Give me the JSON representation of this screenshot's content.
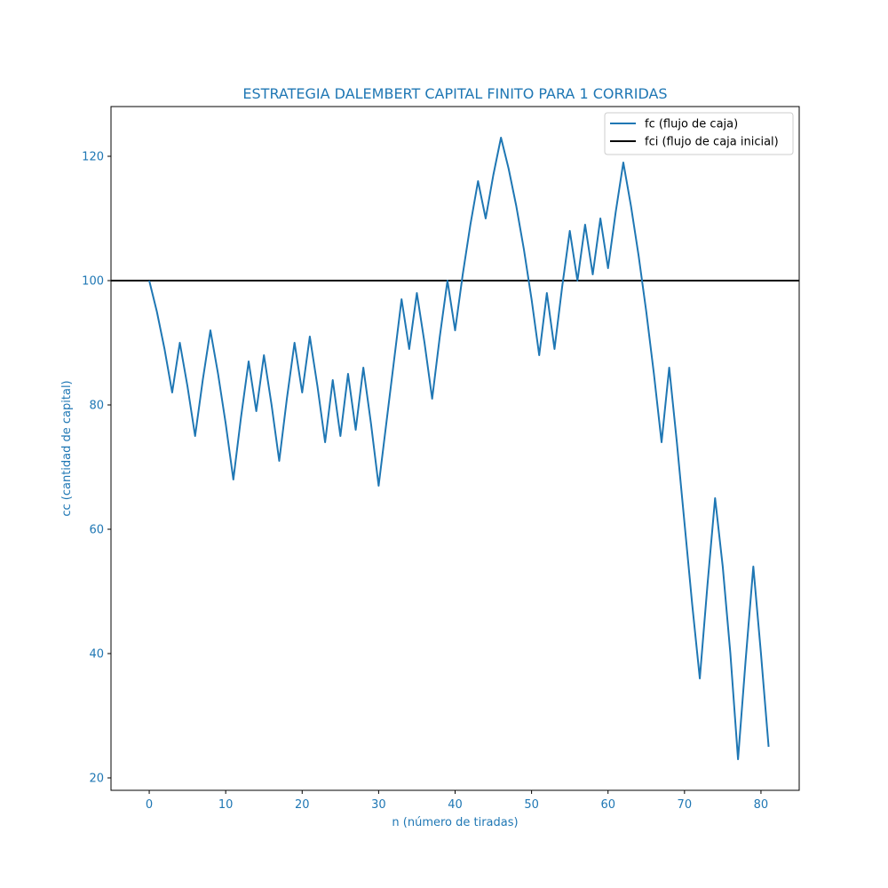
{
  "chart_data": {
    "type": "line",
    "title": "ESTRATEGIA DALEMBERT CAPITAL FINITO PARA 1 CORRIDAS",
    "xlabel": "n (número de tiradas)",
    "ylabel": "cc (cantidad de capital)",
    "xlim": [
      -5,
      85
    ],
    "ylim": [
      18,
      128
    ],
    "x_ticks": [
      0,
      10,
      20,
      30,
      40,
      50,
      60,
      70,
      80
    ],
    "y_ticks": [
      20,
      40,
      60,
      80,
      100,
      120
    ],
    "grid": false,
    "legend_position": "top-right",
    "colors": {
      "text": "#1f77b4",
      "fc": "#1f77b4",
      "fci": "#000000",
      "axes": "#000000"
    },
    "series": [
      {
        "name": "fc (flujo de caja)",
        "color": "#1f77b4",
        "x": [
          0,
          1,
          2,
          3,
          4,
          5,
          6,
          7,
          8,
          9,
          10,
          11,
          12,
          13,
          14,
          15,
          16,
          17,
          18,
          19,
          20,
          21,
          22,
          23,
          24,
          25,
          26,
          27,
          28,
          29,
          30,
          31,
          32,
          33,
          34,
          35,
          36,
          37,
          38,
          39,
          40,
          41,
          42,
          43,
          44,
          45,
          46,
          47,
          48,
          49,
          50,
          51,
          52,
          53,
          54,
          55,
          56,
          57,
          58,
          59,
          60,
          61,
          62,
          63,
          64,
          65,
          66,
          67,
          68,
          69,
          70,
          71,
          72,
          73,
          74,
          75,
          76,
          77,
          78,
          79,
          80,
          81
        ],
        "y": [
          100,
          95,
          89,
          82,
          90,
          83,
          75,
          84,
          92,
          85,
          77,
          68,
          78,
          87,
          79,
          88,
          80,
          71,
          81,
          90,
          82,
          91,
          83,
          74,
          84,
          75,
          85,
          76,
          86,
          77,
          67,
          77,
          87,
          97,
          89,
          98,
          90,
          81,
          91,
          100,
          92,
          101,
          109,
          116,
          110,
          117,
          123,
          118,
          112,
          105,
          97,
          88,
          98,
          89,
          99,
          108,
          100,
          109,
          101,
          110,
          102,
          111,
          119,
          112,
          104,
          95,
          85,
          74,
          86,
          74,
          61,
          48,
          36,
          51,
          65,
          54,
          40,
          23,
          39,
          54,
          40,
          25
        ]
      },
      {
        "name": "fci (flujo de caja inicial)",
        "color": "#000000",
        "y": 100
      }
    ]
  }
}
